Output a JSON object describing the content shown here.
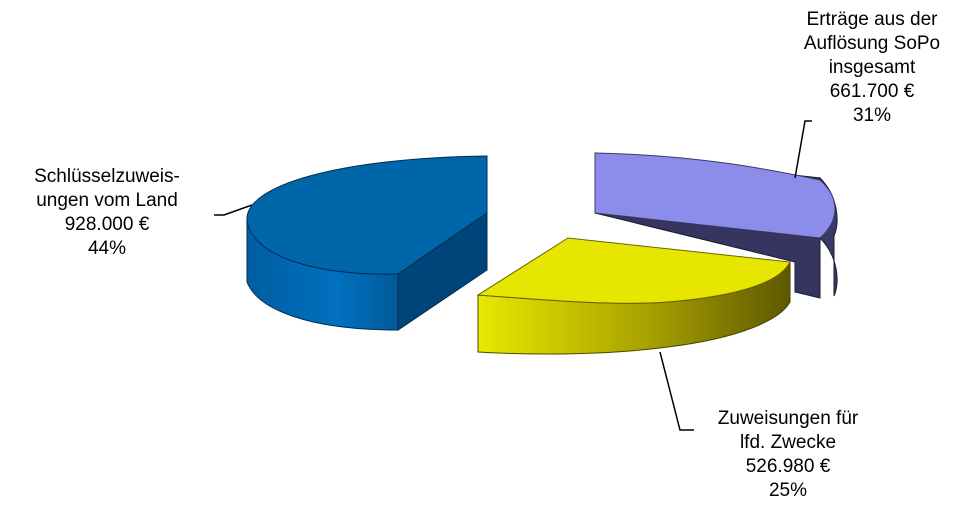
{
  "chart_data": {
    "type": "pie",
    "style": "3d-exploded",
    "title": "",
    "slices": [
      {
        "label_lines": [
          "Erträge aus der",
          "Auflösung SoPo",
          "insgesamt"
        ],
        "value": 661700,
        "value_label": "661.700 €",
        "percent_label": "31%",
        "color": "#8C8CEB"
      },
      {
        "label_lines": [
          "Zuweisungen für",
          "lfd. Zwecke"
        ],
        "value": 526980,
        "value_label": "526.980 €",
        "percent_label": "25%",
        "color": "#E6E600"
      },
      {
        "label_lines": [
          "Schlüsselzuweis-",
          "ungen vom Land"
        ],
        "value": 928000,
        "value_label": "928.000 €",
        "percent_label": "44%",
        "color": "#0066AA"
      }
    ]
  }
}
